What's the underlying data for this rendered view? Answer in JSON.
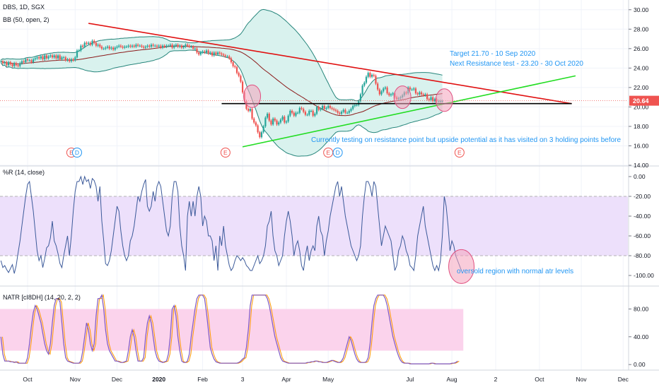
{
  "symbol_header": "DBS, 1D, SGX",
  "colors": {
    "bb_fill": "#d9f2ee",
    "bb_line": "#26857b",
    "bb_mid": "#8b1a1a",
    "candle_up": "#26a69a",
    "candle_down": "#ef5350",
    "resistance": "#e01010",
    "support": "#22dd22",
    "horizontal": "#000000",
    "circle_fill": "#f4a3bb",
    "circle_stroke": "#e05080",
    "wr_line": "#3c5a9a",
    "wr_band": "#ede0fb",
    "natr_band": "#fbd3ec",
    "natr_line1": "#7e57c2",
    "natr_line2": "#ff9800",
    "price_tag": "#ef5350",
    "annotation": "#2196f3",
    "event_badge": "#ef5350",
    "dividend_badge": "#2196f3"
  },
  "chart_data": [
    {
      "type": "candlestick",
      "title": "DBS, 1D, SGX",
      "indicator_label": "BB (50, open, 2)",
      "ylim": [
        14.0,
        31.0
      ],
      "yticks": [
        "30.00",
        "28.00",
        "26.00",
        "24.00",
        "22.00",
        "20.00",
        "18.00",
        "16.00",
        "14.00"
      ],
      "last_price": "20.64",
      "x_months": [
        "Oct",
        "Nov",
        "Dec",
        "2020",
        "Feb",
        "3",
        "Apr",
        "May",
        "Jul",
        "Aug",
        "2",
        "Oct",
        "Nov",
        "Dec"
      ],
      "x_month_index": [
        14,
        39,
        61,
        83,
        106,
        127,
        150,
        172,
        215,
        237,
        260,
        283,
        305,
        327
      ],
      "closes": [
        24.7,
        24.5,
        24.6,
        24.3,
        24.6,
        24.4,
        24.2,
        24.5,
        24.3,
        24.2,
        24.5,
        24.7,
        24.6,
        24.9,
        24.8,
        24.8,
        24.6,
        24.9,
        25.0,
        25.1,
        25.0,
        25.2,
        24.9,
        25.3,
        25.0,
        25.2,
        25.3,
        25.1,
        25.3,
        25.0,
        25.3,
        24.9,
        25.1,
        25.1,
        24.8,
        24.9,
        24.7,
        24.9,
        24.8,
        25.1,
        25.8,
        25.8,
        26.3,
        26.2,
        26.6,
        26.5,
        26.6,
        26.4,
        26.8,
        26.6,
        26.3,
        26.4,
        26.2,
        26.0,
        26.0,
        26.1,
        26.2,
        26.0,
        26.1,
        25.9,
        26.1,
        26.2,
        26.3,
        26.2,
        26.1,
        26.2,
        26.2,
        26.3,
        26.2,
        26.3,
        26.2,
        26.4,
        26.3,
        26.3,
        26.2,
        26.1,
        26.2,
        26.3,
        26.2,
        26.4,
        26.3,
        26.3,
        26.2,
        26.3,
        26.1,
        26.3,
        26.2,
        26.3,
        26.3,
        26.4,
        26.1,
        26.3,
        26.4,
        26.2,
        26.3,
        26.1,
        26.2,
        26.4,
        26.3,
        26.2,
        26.2,
        26.0,
        26.0,
        25.6,
        25.4,
        25.6,
        25.7,
        25.6,
        25.8,
        25.5,
        25.6,
        25.3,
        25.6,
        25.4,
        25.6,
        25.5,
        25.4,
        25.3,
        25.2,
        25.2,
        25.0,
        24.6,
        24.2,
        24.1,
        23.5,
        23.2,
        22.6,
        21.5,
        20.6,
        19.8,
        19.6,
        19.8,
        18.8,
        18.4,
        18.1,
        17.4,
        16.9,
        17.4,
        18.0,
        18.9,
        19.3,
        18.6,
        18.2,
        18.8,
        18.6,
        18.2,
        18.4,
        18.7,
        19.0,
        18.4,
        18.5,
        19.1,
        19.6,
        19.4,
        19.1,
        19.4,
        19.4,
        19.9,
        19.8,
        19.5,
        19.2,
        19.2,
        19.6,
        19.6,
        19.1,
        19.3,
        20.0,
        19.7,
        19.8,
        20.1,
        19.8,
        19.9,
        20.1,
        19.9,
        19.8,
        19.7,
        19.6,
        19.4,
        19.3,
        19.5,
        19.7,
        19.4,
        19.4,
        19.6,
        19.8,
        20.1,
        20.2,
        20.2,
        20.6,
        21.3,
        22.2,
        22.5,
        23.1,
        23.5,
        23.1,
        23.3,
        23.2,
        22.4,
        21.8,
        21.3,
        21.6,
        21.9,
        22.0,
        21.4,
        21.2,
        21.3,
        21.4,
        21.0,
        20.8,
        20.9,
        21.0,
        21.2,
        21.5,
        21.4,
        22.0,
        21.8,
        21.8,
        21.9,
        21.4,
        21.3,
        21.5,
        21.3,
        21.2,
        21.3,
        20.8,
        20.7,
        21.0,
        20.6,
        20.8,
        20.6,
        20.6,
        20.6,
        20.6
      ],
      "annotations": {
        "target": "Target 21.70 - 10 Sep 2020",
        "next_resistance": "Next Resistance test - 23.20 - 30 Oct 2020",
        "current": "Currently testing on resistance point but upside potential as it has visited on 3 holding points before"
      },
      "events": [
        {
          "type": "E",
          "x": 37
        },
        {
          "type": "D",
          "x": 40
        },
        {
          "type": "E",
          "x": 118
        },
        {
          "type": "E",
          "x": 172
        },
        {
          "type": "D",
          "x": 177
        },
        {
          "type": "E",
          "x": 241
        }
      ],
      "trendlines": {
        "resistance": [
          [
            46,
            28.6
          ],
          [
            300,
            20.34
          ]
        ],
        "support": [
          [
            127,
            15.9
          ],
          [
            302,
            23.2
          ]
        ],
        "horizontal": [
          [
            116,
            20.34
          ],
          [
            300,
            20.34
          ]
        ]
      },
      "circles": [
        {
          "x": 132,
          "y": 21.1
        },
        {
          "x": 211,
          "y": 21.0
        },
        {
          "x": 233,
          "y": 20.7
        }
      ]
    },
    {
      "type": "line",
      "title": "%R (14, close)",
      "ylim": [
        -110,
        10
      ],
      "yticks": [
        "0.00",
        "-20.00",
        "-40.00",
        "-60.00",
        "-80.00",
        "-100.00"
      ],
      "band": [
        -80,
        -20
      ],
      "values": [
        -85,
        -92,
        -90,
        -94,
        -97,
        -93,
        -89,
        -98,
        -90,
        -77,
        -65,
        -50,
        -35,
        -20,
        -8,
        -5,
        -20,
        -35,
        -55,
        -75,
        -85,
        -80,
        -92,
        -83,
        -72,
        -70,
        -62,
        -45,
        -65,
        -70,
        -78,
        -88,
        -92,
        -80,
        -70,
        -60,
        -80,
        -60,
        -35,
        -15,
        -5,
        -5,
        0,
        -8,
        0,
        -5,
        -3,
        -12,
        -2,
        -4,
        -10,
        -25,
        -10,
        -45,
        -65,
        -88,
        -90,
        -85,
        -75,
        -60,
        -45,
        -30,
        -35,
        -55,
        -70,
        -80,
        -85,
        -80,
        -65,
        -60,
        -50,
        -35,
        -20,
        -25,
        -15,
        -8,
        -3,
        -30,
        -35,
        -30,
        -15,
        -25,
        -10,
        -5,
        -10,
        -25,
        -40,
        -55,
        -60,
        -50,
        -20,
        -5,
        -5,
        -15,
        -50,
        -70,
        -80,
        -95,
        -40,
        -25,
        -40,
        -25,
        -40,
        -20,
        -10,
        -20,
        -50,
        -40,
        -45,
        -60,
        -60,
        -65,
        -85,
        -70,
        -95,
        -60,
        -70,
        -50,
        -70,
        -80,
        -90,
        -95,
        -92,
        -85,
        -80,
        -82,
        -85,
        -82,
        -85,
        -90,
        -92,
        -95,
        -95,
        -90,
        -85,
        -80,
        -88,
        -85,
        -80,
        -70,
        -50,
        -45,
        -35,
        -60,
        -75,
        -80,
        -90,
        -85,
        -80,
        -60,
        -45,
        -35,
        -45,
        -60,
        -80,
        -70,
        -65,
        -75,
        -90,
        -95,
        -80,
        -70,
        -85,
        -75,
        -70,
        -75,
        -50,
        -40,
        -55,
        -60,
        -80,
        -65,
        -55,
        -40,
        -30,
        -20,
        -10,
        -5,
        -20,
        -10,
        -25,
        -40,
        -50,
        -60,
        -70,
        -75,
        -80,
        -85,
        -80,
        -70,
        -40,
        -20,
        -5,
        -5,
        -10,
        -20,
        -5,
        -10,
        -30,
        -50,
        -70,
        -60,
        -50,
        -55,
        -60,
        -65,
        -80,
        -95,
        -90,
        -75,
        -70,
        -60,
        -65,
        -75,
        -80,
        -90,
        -92,
        -95,
        -80,
        -60,
        -50,
        -40,
        -30,
        -50,
        -60,
        -70,
        -80,
        -90,
        -95,
        -90,
        -95,
        -85,
        -60,
        -20,
        -30,
        -50,
        -75,
        -65,
        -70,
        -80,
        -85,
        -90,
        -95
      ],
      "annotation": "oversold region with normal atr levels",
      "circle": {
        "x": 242,
        "y": -91
      }
    },
    {
      "type": "line",
      "title": "NATR [cI8DH] (14, 20, 2, 2)",
      "ylim": [
        -8,
        112
      ],
      "yticks": [
        "80.00",
        "40.00",
        "0.00"
      ],
      "band": [
        20,
        80
      ],
      "band_end_index": 243,
      "values": [
        40,
        15,
        5,
        5,
        5,
        4,
        4,
        3,
        4,
        2,
        2,
        2,
        2,
        2,
        10,
        30,
        55,
        75,
        85,
        80,
        70,
        60,
        45,
        30,
        20,
        15,
        30,
        60,
        85,
        95,
        95,
        90,
        60,
        30,
        10,
        5,
        4,
        3,
        2,
        2,
        2,
        2,
        5,
        20,
        40,
        60,
        50,
        30,
        20,
        30,
        70,
        95,
        95,
        100,
        80,
        50,
        30,
        20,
        15,
        10,
        5,
        5,
        4,
        3,
        3,
        4,
        5,
        20,
        40,
        50,
        40,
        20,
        5,
        5,
        5,
        10,
        40,
        60,
        70,
        60,
        40,
        20,
        10,
        5,
        4,
        3,
        4,
        5,
        15,
        40,
        80,
        85,
        70,
        40,
        20,
        5,
        3,
        3,
        5,
        15,
        40,
        60,
        80,
        95,
        100,
        100,
        100,
        95,
        75,
        50,
        25,
        15,
        8,
        4,
        3,
        2,
        2,
        2,
        2,
        2,
        2,
        2,
        2,
        2,
        2,
        3,
        5,
        8,
        10,
        25,
        50,
        85,
        100,
        100,
        100,
        100,
        100,
        100,
        100,
        100,
        95,
        85,
        70,
        55,
        40,
        30,
        20,
        10,
        5,
        4,
        3,
        2,
        2,
        2,
        2,
        2,
        2,
        2,
        2,
        2,
        2,
        3,
        3,
        4,
        4,
        5,
        5,
        4,
        4,
        3,
        3,
        3,
        4,
        5,
        6,
        5,
        4,
        3,
        3,
        5,
        10,
        20,
        30,
        40,
        35,
        25,
        15,
        8,
        4,
        3,
        3,
        3,
        4,
        10,
        30,
        60,
        85,
        95,
        100,
        100,
        100,
        100,
        95,
        85,
        70,
        55,
        40,
        30,
        20,
        12,
        6,
        3,
        2,
        2,
        2,
        1,
        1,
        1,
        1,
        1,
        1,
        1,
        1,
        1,
        1,
        1,
        2,
        2,
        1,
        1,
        1,
        1,
        1,
        1,
        1,
        1,
        1,
        2,
        2,
        3,
        5
      ]
    }
  ]
}
